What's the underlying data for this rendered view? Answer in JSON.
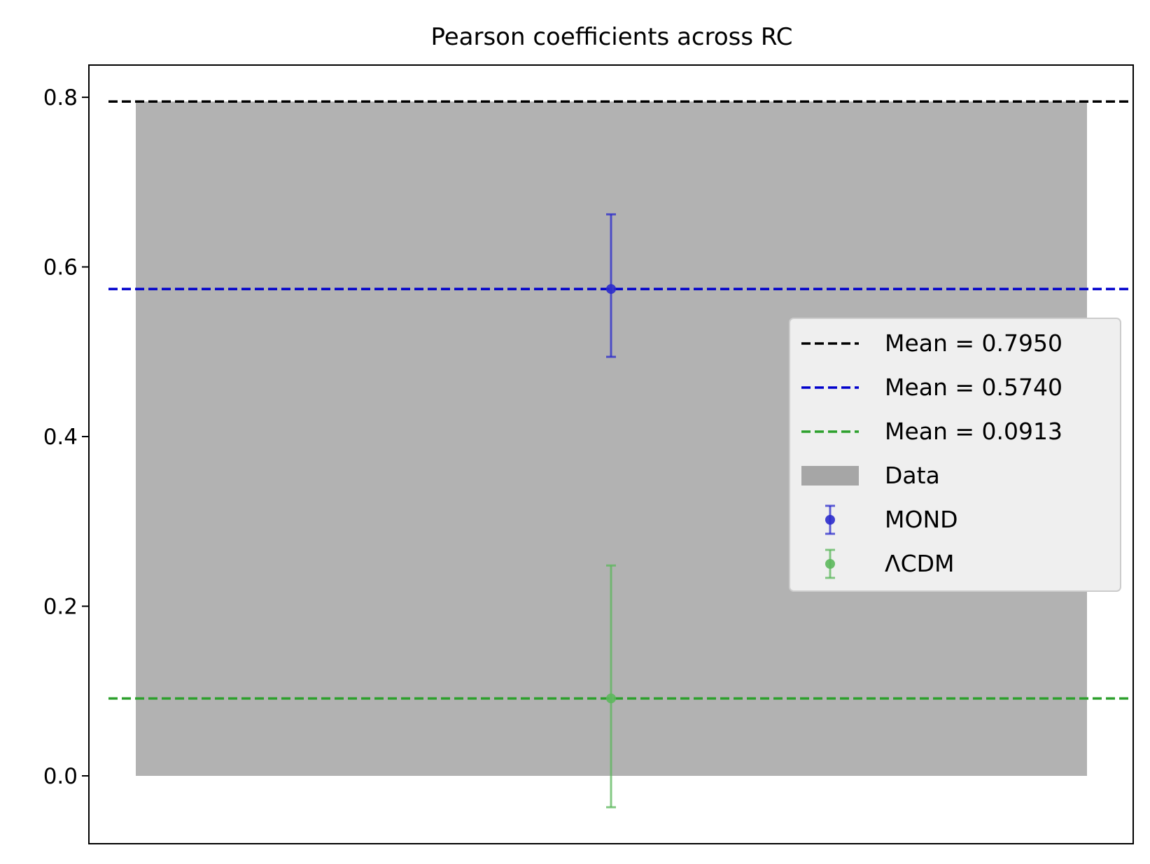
{
  "chart_data": {
    "type": "bar",
    "title": "Pearson coefficients across RC",
    "xlabel": "",
    "ylabel": "",
    "ylim": [
      -0.08,
      0.838
    ],
    "y_ticks": [
      0.0,
      0.2,
      0.4,
      0.6,
      0.8
    ],
    "y_tick_labels": [
      "0.0",
      "0.2",
      "0.4",
      "0.6",
      "0.8"
    ],
    "grid": false,
    "legend_position": "center-right",
    "bar": {
      "label": "Data",
      "value": 0.795,
      "color": "#b2b2b2"
    },
    "mean_lines": [
      {
        "label": "Mean = 0.7950",
        "value": 0.795,
        "color": "#000000"
      },
      {
        "label": "Mean = 0.5740",
        "value": 0.574,
        "color": "#0000cc"
      },
      {
        "label": "Mean = 0.0913",
        "value": 0.0913,
        "color": "#2ca02c"
      }
    ],
    "points": [
      {
        "label": "MOND",
        "value": 0.574,
        "err_low": 0.494,
        "err_high": 0.662,
        "color": "#2b2bcc"
      },
      {
        "label": "ΛCDM",
        "value": 0.0913,
        "err_low": -0.037,
        "err_high": 0.248,
        "color": "#5cb85c"
      }
    ]
  }
}
